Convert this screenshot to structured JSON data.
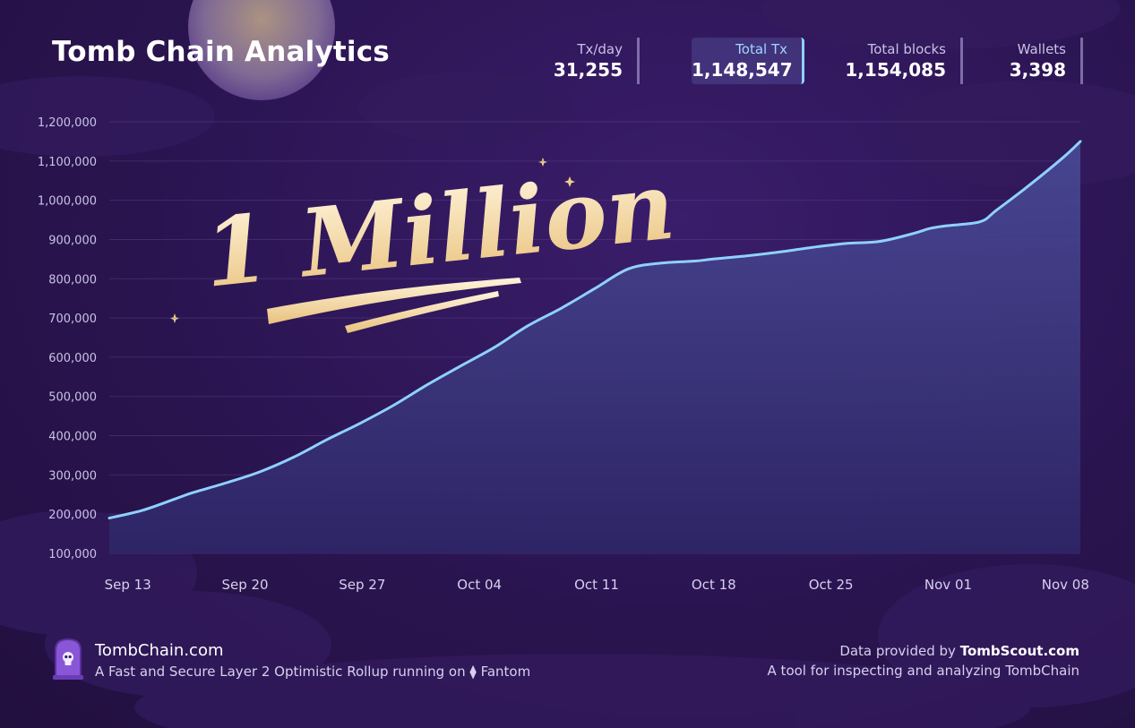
{
  "header": {
    "title": "Tomb Chain Analytics"
  },
  "stats": [
    {
      "label": "Tx/day",
      "value": "31,255",
      "active": false
    },
    {
      "label": "Total Tx",
      "value": "1,148,547",
      "active": true
    },
    {
      "label": "Total blocks",
      "value": "1,154,085",
      "active": false
    },
    {
      "label": "Wallets",
      "value": "3,398",
      "active": false
    }
  ],
  "headline": {
    "text": "1 Million"
  },
  "footer": {
    "site": "TombChain.com",
    "tagline_prefix": "A Fast and Secure Layer 2 Optimistic Rollup running on",
    "tagline_network": "Fantom",
    "data_prefix": "Data provided by",
    "data_source": "TombScout.com",
    "data_desc": "A tool for inspecting and analyzing TombChain"
  },
  "colors": {
    "line": "#8fd1ff",
    "area_top": "#4a4a96",
    "area_bottom": "#2e2566",
    "accent_gold": "#f0d08a",
    "background": "#2a1450"
  },
  "chart_data": {
    "type": "area",
    "title": "Total Tx",
    "xlabel": "",
    "ylabel": "",
    "ylim": [
      100000,
      1200000
    ],
    "xlim": [
      0,
      58
    ],
    "yticks": [
      1200000,
      1100000,
      1000000,
      900000,
      800000,
      700000,
      600000,
      500000,
      400000,
      300000,
      200000,
      100000
    ],
    "ytick_labels": [
      "1,200,000",
      "1,100,000",
      "1,000,000",
      "900,000",
      "800,000",
      "700,000",
      "600,000",
      "500,000",
      "400,000",
      "300,000",
      "200,000",
      "100,000"
    ],
    "xticks": [
      1,
      8,
      15,
      22,
      29,
      36,
      43,
      50,
      57
    ],
    "xtick_labels": [
      "Sep 13",
      "Sep 20",
      "Sep 27",
      "Oct 04",
      "Oct 11",
      "Oct 18",
      "Oct 25",
      "Nov 01",
      "Nov 08"
    ],
    "grid": true,
    "series": [
      {
        "name": "Total Tx",
        "x": [
          0,
          2,
          4,
          5,
          7,
          9,
          11,
          13,
          15,
          17,
          19,
          21,
          23,
          25,
          27,
          29,
          31,
          33,
          35,
          36,
          38,
          40,
          42,
          44,
          46,
          48,
          49,
          50,
          52,
          53,
          55,
          57,
          58
        ],
        "y": [
          190000,
          210000,
          240000,
          255000,
          280000,
          308000,
          345000,
          390000,
          432000,
          478000,
          530000,
          578000,
          625000,
          680000,
          725000,
          775000,
          825000,
          840000,
          845000,
          850000,
          858000,
          868000,
          880000,
          890000,
          895000,
          915000,
          928000,
          935000,
          945000,
          975000,
          1040000,
          1110000,
          1150000
        ]
      }
    ]
  }
}
